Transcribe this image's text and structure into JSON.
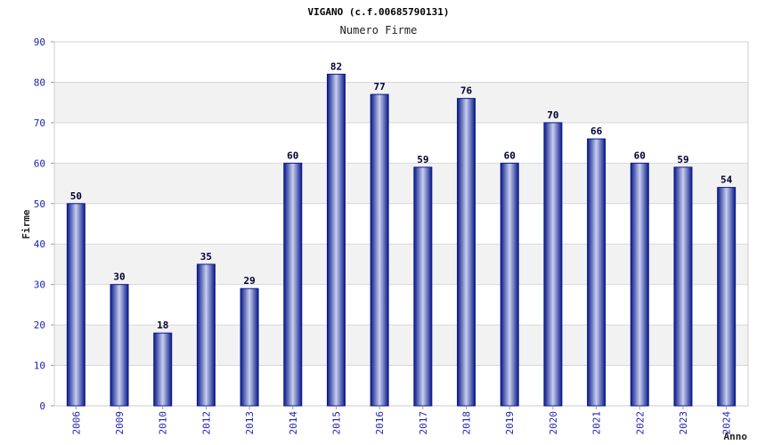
{
  "chart_data": {
    "type": "bar",
    "title": "VIGANO (c.f.00685790131)",
    "subtitle": "Numero Firme",
    "xlabel": "Anno",
    "ylabel": "Firme",
    "ylim": [
      0,
      90
    ],
    "yticks": [
      "0",
      "10",
      "20",
      "30",
      "40",
      "50",
      "60",
      "70",
      "80",
      "90"
    ],
    "grid": true,
    "categories": [
      "2006",
      "2009",
      "2010",
      "2012",
      "2013",
      "2014",
      "2015",
      "2016",
      "2017",
      "2018",
      "2019",
      "2020",
      "2021",
      "2022",
      "2023",
      "2024"
    ],
    "values": [
      50,
      30,
      18,
      35,
      29,
      60,
      82,
      77,
      59,
      76,
      60,
      70,
      66,
      60,
      59,
      54
    ],
    "colors": {
      "bar_edge": "#0a1a8a",
      "bar_mid": "#c8cfee",
      "band": "#f2f2f2",
      "grid": "#d8d8d8",
      "tick_text": "#2020b0"
    }
  }
}
